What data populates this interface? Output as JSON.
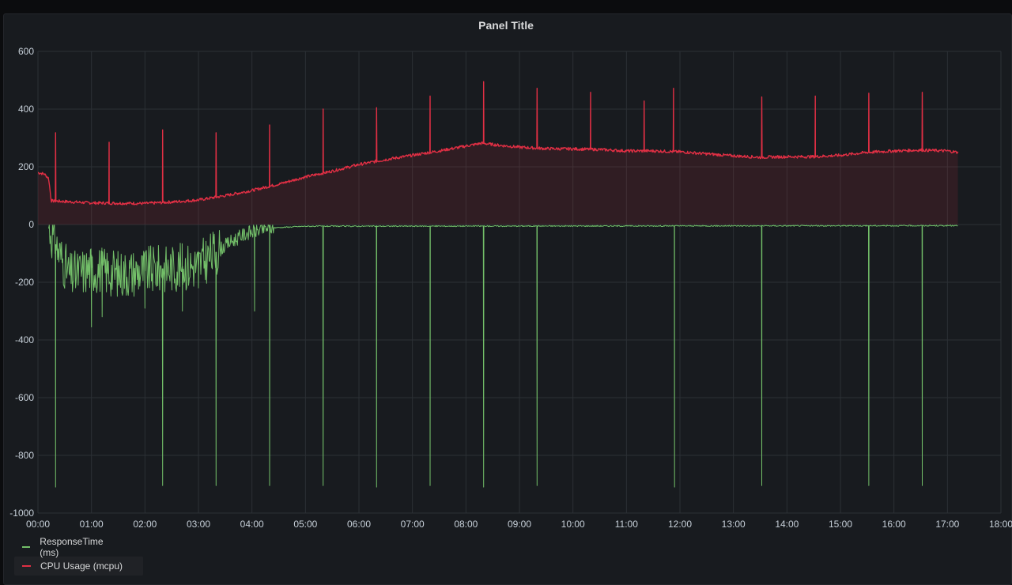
{
  "panel": {
    "title": "Panel Title"
  },
  "chart_data": {
    "type": "line",
    "xlim": [
      "00:00",
      "18:00"
    ],
    "ylim": [
      -1000,
      600
    ],
    "x_ticks": [
      "00:00",
      "01:00",
      "02:00",
      "03:00",
      "04:00",
      "05:00",
      "06:00",
      "07:00",
      "08:00",
      "09:00",
      "10:00",
      "11:00",
      "12:00",
      "13:00",
      "14:00",
      "15:00",
      "16:00",
      "17:00",
      "18:00"
    ],
    "y_ticks": [
      "600",
      "400",
      "200",
      "0",
      "-200",
      "-400",
      "-600",
      "-800",
      "-1000"
    ],
    "grid": true,
    "legend_placement": "bottom-left",
    "series": [
      {
        "name": "ResponseTime (ms)",
        "color": "#73bf69",
        "fill": false,
        "baseline": [
          [
            0.2,
            -5
          ],
          [
            0.35,
            -80
          ],
          [
            0.6,
            -180
          ],
          [
            1.0,
            -150
          ],
          [
            1.5,
            -170
          ],
          [
            2.0,
            -160
          ],
          [
            2.5,
            -150
          ],
          [
            3.0,
            -140
          ],
          [
            3.3,
            -100
          ],
          [
            3.6,
            -60
          ],
          [
            3.9,
            -30
          ],
          [
            4.3,
            -12
          ],
          [
            5.0,
            -6
          ],
          [
            17.2,
            -4
          ]
        ],
        "spikes": [
          [
            0.33,
            -910
          ],
          [
            2.33,
            -905
          ],
          [
            3.33,
            -905
          ],
          [
            4.33,
            -905
          ],
          [
            5.33,
            -905
          ],
          [
            6.33,
            -910
          ],
          [
            7.33,
            -905
          ],
          [
            8.33,
            -910
          ],
          [
            9.33,
            -905
          ],
          [
            11.9,
            -910
          ],
          [
            13.53,
            -905
          ],
          [
            15.53,
            -905
          ],
          [
            16.53,
            -905
          ],
          [
            1.0,
            -355
          ],
          [
            1.2,
            -320
          ],
          [
            2.0,
            -290
          ],
          [
            2.7,
            -300
          ],
          [
            3.0,
            -220
          ],
          [
            4.05,
            -300
          ]
        ]
      },
      {
        "name": "CPU Usage (mcpu)",
        "color": "#e02f44",
        "fill": true,
        "baseline": [
          [
            0.0,
            180
          ],
          [
            0.12,
            175
          ],
          [
            0.2,
            160
          ],
          [
            0.25,
            82
          ],
          [
            1.0,
            75
          ],
          [
            2.0,
            73
          ],
          [
            2.5,
            78
          ],
          [
            3.0,
            85
          ],
          [
            3.5,
            100
          ],
          [
            4.0,
            118
          ],
          [
            4.5,
            140
          ],
          [
            5.0,
            165
          ],
          [
            5.5,
            185
          ],
          [
            6.0,
            208
          ],
          [
            6.5,
            225
          ],
          [
            7.0,
            240
          ],
          [
            7.5,
            255
          ],
          [
            8.0,
            272
          ],
          [
            8.3,
            282
          ],
          [
            8.6,
            275
          ],
          [
            9.0,
            268
          ],
          [
            9.5,
            263
          ],
          [
            10.0,
            262
          ],
          [
            10.5,
            260
          ],
          [
            11.0,
            255
          ],
          [
            11.5,
            255
          ],
          [
            12.0,
            252
          ],
          [
            12.5,
            245
          ],
          [
            13.0,
            238
          ],
          [
            13.5,
            233
          ],
          [
            14.0,
            235
          ],
          [
            14.5,
            235
          ],
          [
            15.0,
            240
          ],
          [
            15.5,
            250
          ],
          [
            16.0,
            255
          ],
          [
            16.5,
            258
          ],
          [
            17.0,
            255
          ],
          [
            17.2,
            250
          ]
        ],
        "spikes": [
          [
            0.33,
            318
          ],
          [
            1.33,
            285
          ],
          [
            2.33,
            328
          ],
          [
            3.33,
            318
          ],
          [
            4.33,
            345
          ],
          [
            5.33,
            400
          ],
          [
            6.33,
            405
          ],
          [
            7.33,
            445
          ],
          [
            8.33,
            495
          ],
          [
            9.33,
            472
          ],
          [
            10.33,
            458
          ],
          [
            11.33,
            428
          ],
          [
            11.88,
            472
          ],
          [
            13.53,
            442
          ],
          [
            14.53,
            445
          ],
          [
            15.53,
            455
          ],
          [
            16.53,
            458
          ]
        ]
      }
    ]
  }
}
